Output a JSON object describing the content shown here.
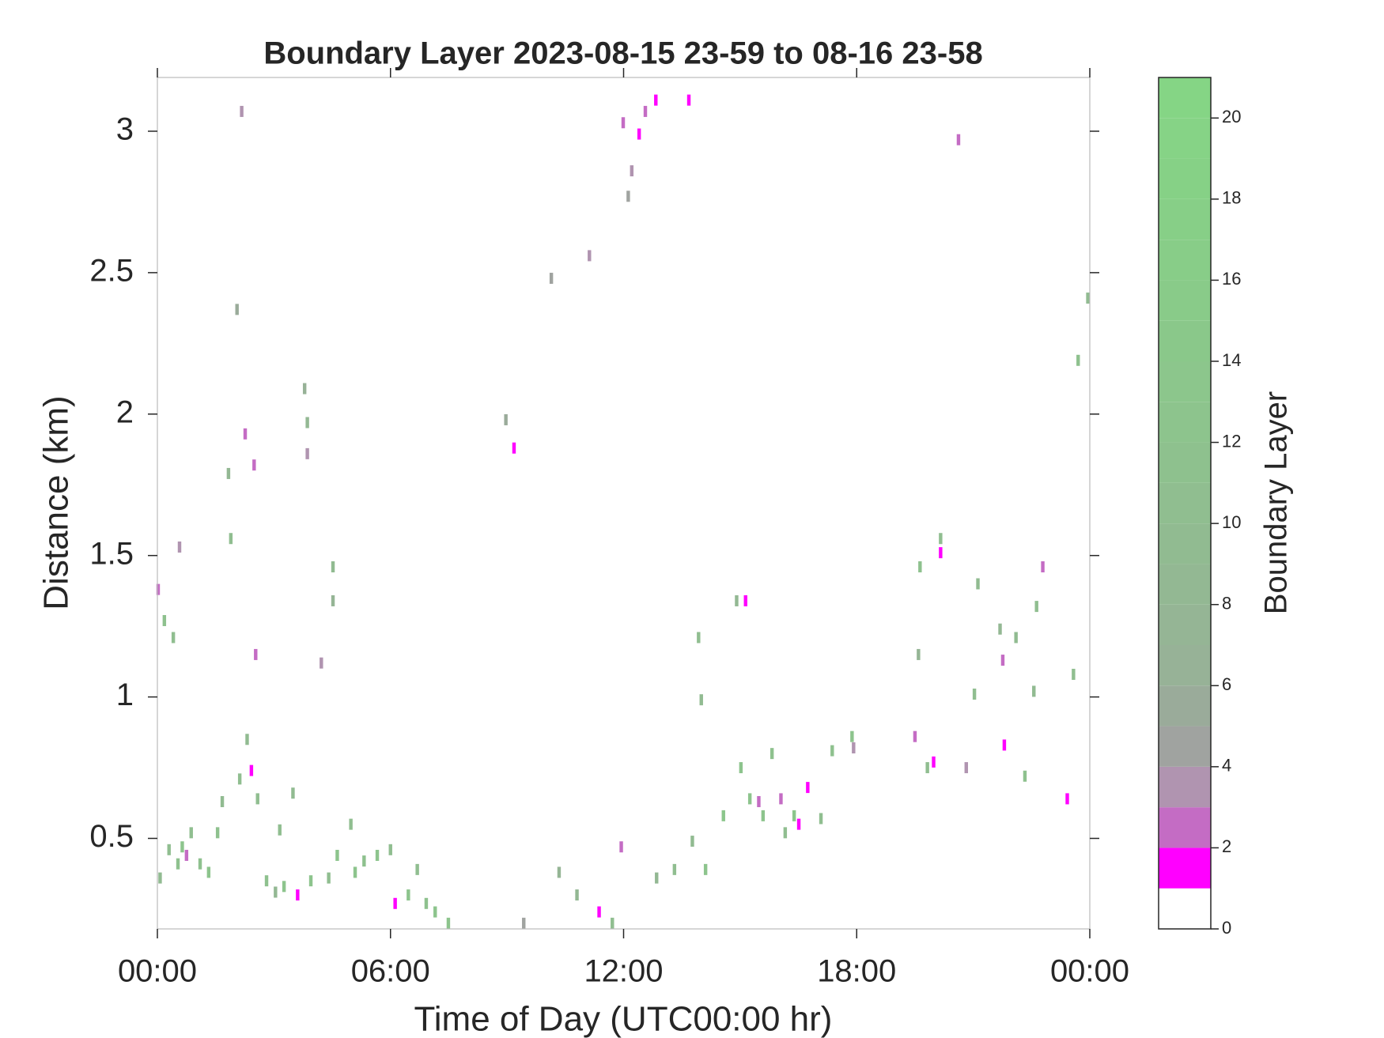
{
  "chart_data": {
    "type": "heatmap",
    "title": "Boundary Layer 2023-08-15 23-59 to 08-16 23-58",
    "xlabel": "Time of Day (UTC00:00 hr)",
    "ylabel": "Distance (km)",
    "xlim": [
      0,
      24
    ],
    "xticks": [
      {
        "value": 0,
        "label": "00:00"
      },
      {
        "value": 6,
        "label": "06:00"
      },
      {
        "value": 12,
        "label": "12:00"
      },
      {
        "value": 18,
        "label": "18:00"
      },
      {
        "value": 24,
        "label": "00:00"
      }
    ],
    "ylim": [
      0.18,
      3.19
    ],
    "yticks": [
      0.5,
      1,
      1.5,
      2,
      2.5,
      3
    ],
    "x": [
      0.07,
      0.3,
      0.53,
      0.64,
      0.75,
      0.87,
      1.1,
      1.32,
      1.55,
      1.67,
      2.12,
      2.31,
      2.42,
      2.58,
      2.81,
      3.04,
      3.15,
      3.26,
      3.49,
      3.61,
      3.95,
      4.41,
      4.63,
      4.98,
      5.09,
      5.32,
      5.66,
      6.0,
      6.12,
      6.46,
      6.69,
      6.92,
      7.15,
      7.49,
      0.02,
      0.18,
      0.41,
      0.57,
      1.83,
      1.89,
      2.05,
      2.17,
      2.26,
      2.49,
      2.53,
      3.79,
      3.86,
      3.86,
      4.22,
      4.52,
      4.52,
      8.97,
      9.18,
      10.14,
      11.12,
      9.43,
      10.34,
      10.8,
      11.37,
      11.71,
      11.94,
      11.99,
      12.12,
      12.21,
      12.4,
      12.56,
      12.83,
      13.68,
      12.85,
      13.31,
      13.77,
      13.93,
      14.0,
      14.11,
      14.57,
      14.91,
      15.02,
      15.14,
      15.25,
      15.48,
      15.59,
      15.82,
      16.05,
      16.16,
      16.39,
      16.51,
      16.74,
      17.08,
      17.37,
      17.88,
      17.92,
      19.5,
      19.59,
      19.63,
      19.82,
      19.98,
      20.16,
      20.16,
      20.62,
      20.82,
      21.03,
      21.12,
      21.69,
      21.76,
      21.8,
      22.1,
      22.33,
      22.56,
      22.63,
      22.79,
      23.42,
      23.58,
      23.7,
      23.95
    ],
    "y": [
      0.36,
      0.46,
      0.41,
      0.47,
      0.44,
      0.52,
      0.41,
      0.38,
      0.52,
      0.63,
      0.71,
      0.85,
      0.74,
      0.64,
      0.35,
      0.31,
      0.53,
      0.33,
      0.66,
      0.3,
      0.35,
      0.36,
      0.44,
      0.55,
      0.38,
      0.42,
      0.44,
      0.46,
      0.27,
      0.3,
      0.39,
      0.27,
      0.24,
      0.2,
      1.38,
      1.27,
      1.21,
      1.53,
      1.79,
      1.56,
      2.37,
      3.07,
      1.93,
      1.82,
      1.15,
      2.09,
      1.97,
      1.86,
      1.12,
      1.46,
      1.34,
      1.98,
      1.88,
      2.48,
      2.56,
      0.2,
      0.38,
      0.3,
      0.24,
      0.2,
      0.47,
      3.03,
      2.77,
      2.86,
      2.99,
      3.07,
      3.11,
      3.11,
      0.36,
      0.39,
      0.49,
      1.21,
      0.99,
      0.39,
      0.58,
      1.34,
      0.75,
      1.34,
      0.64,
      0.63,
      0.58,
      0.8,
      0.64,
      0.52,
      0.58,
      0.55,
      0.68,
      0.57,
      0.81,
      0.86,
      0.82,
      0.86,
      1.15,
      1.46,
      0.75,
      0.77,
      1.56,
      1.51,
      2.97,
      0.75,
      1.01,
      1.4,
      1.24,
      1.13,
      0.83,
      1.21,
      0.72,
      1.02,
      1.32,
      1.46,
      0.64,
      1.08,
      2.19,
      2.41
    ],
    "values": [
      9,
      10,
      11,
      12,
      2,
      10,
      11,
      12,
      11,
      9,
      10,
      9,
      1,
      10,
      11,
      8,
      10,
      12,
      9,
      1,
      12,
      10,
      12,
      10,
      12,
      11,
      12,
      10,
      1,
      12,
      10,
      11,
      12,
      12,
      2,
      11,
      10,
      3,
      8,
      10,
      5,
      3,
      2,
      2,
      2,
      6,
      8,
      3,
      3,
      9,
      7,
      5,
      1,
      4,
      3,
      4,
      7,
      8,
      1,
      10,
      2,
      2,
      4,
      3,
      1,
      2,
      1,
      1,
      8,
      10,
      9,
      10,
      9,
      12,
      13,
      8,
      12,
      1,
      12,
      2,
      12,
      11,
      2,
      10,
      13,
      1,
      1,
      10,
      11,
      12,
      3,
      2,
      7,
      11,
      10,
      1,
      10,
      1,
      2,
      3,
      10,
      9,
      8,
      2,
      1,
      9,
      11,
      9,
      10,
      2,
      1,
      10,
      11,
      9
    ],
    "colorbar": {
      "label": "Boundary Layer",
      "lim": [
        0,
        21
      ],
      "ticks": [
        0,
        2,
        4,
        6,
        8,
        10,
        12,
        14,
        16,
        18,
        20
      ],
      "colors": [
        "#ffffff",
        "#ff00ff",
        "#c46cc4",
        "#b094b0",
        "#a0a3a0",
        "#9aab9a",
        "#97b297",
        "#95b595",
        "#93b893",
        "#91bb91",
        "#90be90",
        "#8ec18e",
        "#8dc48d",
        "#8cc68c",
        "#8ac88a",
        "#89cb89",
        "#88cd88",
        "#87cf87",
        "#86d186",
        "#86d386",
        "#85d585"
      ]
    }
  }
}
